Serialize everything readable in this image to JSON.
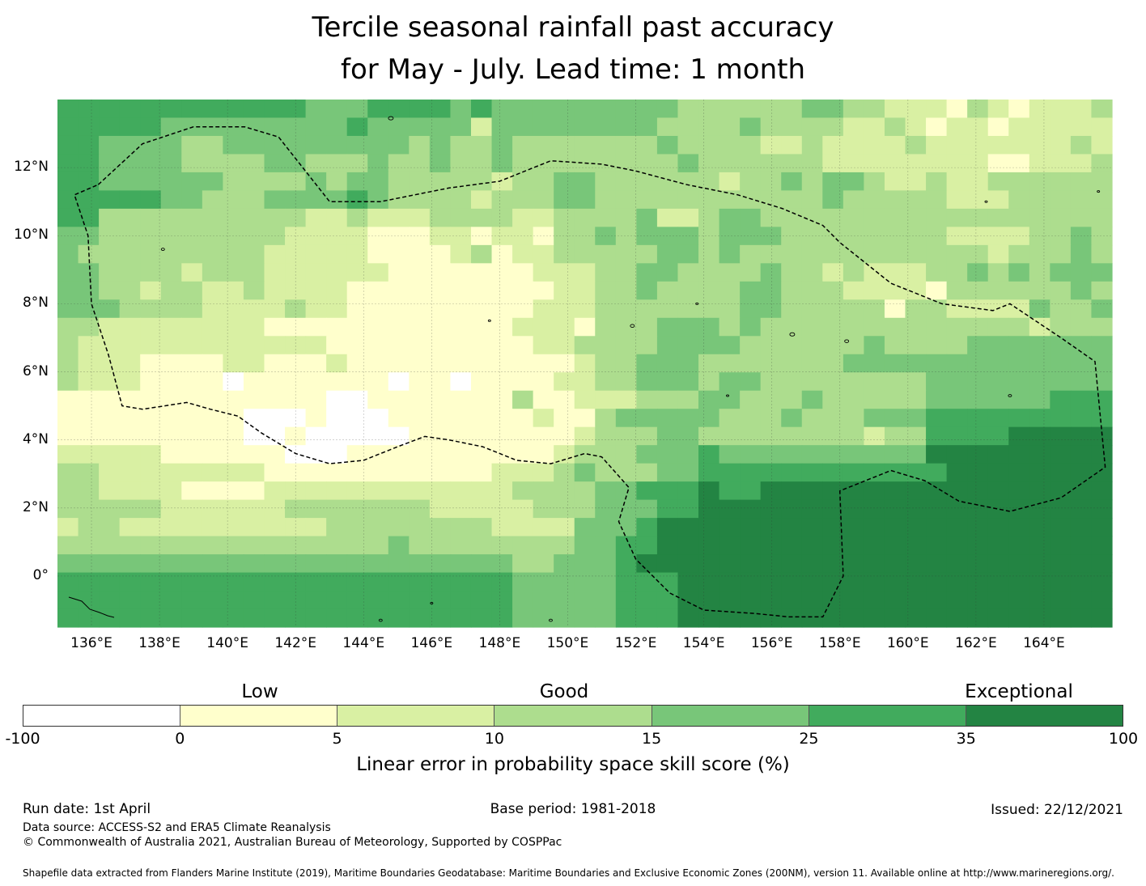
{
  "title": {
    "line1": "Tercile seasonal rainfall past accuracy",
    "line2": "for May - July. Lead time: 1 month"
  },
  "map": {
    "lon_range": [
      135,
      166
    ],
    "lat_range": [
      -1.5,
      14
    ],
    "lon_labels": [
      "136°E",
      "138°E",
      "140°E",
      "142°E",
      "144°E",
      "146°E",
      "148°E",
      "150°E",
      "152°E",
      "154°E",
      "156°E",
      "158°E",
      "160°E",
      "162°E",
      "164°E"
    ],
    "lon_values": [
      136,
      138,
      140,
      142,
      144,
      146,
      148,
      150,
      152,
      154,
      156,
      158,
      160,
      162,
      164
    ],
    "lat_labels": [
      "12°N",
      "10°N",
      "8°N",
      "6°N",
      "4°N",
      "2°N",
      "0°"
    ],
    "lat_values": [
      12,
      10,
      8,
      6,
      4,
      2,
      0
    ],
    "colors": {
      "nodata": "#ffffff",
      "c1": "#ffffcc",
      "c2": "#d9f0a3",
      "c3": "#addd8e",
      "c4": "#78c679",
      "c5": "#41ab5d",
      "c6": "#238443",
      "coast": "#000000",
      "eez": "#000000"
    },
    "skill_grid": [
      "555555555555444555545444444444333333443322213212223",
      "555554444444445444442444444443333433332232122122222",
      "554444334444444443433433333334333322322223222222232",
      "554444333344333433433433333333433333322222222112223",
      "554444443333434433333233443333332334344322322333333",
      "555554433344445433332333443333333333343333322233333",
      "553333333333223222333322333342234433333333333333333",
      "443333333332222111221221334344434443333333322223343",
      "433333333322222111123122333334434333333333333233343",
      "443333233322222211111112223344333343323222334343444",
      "443323322322221111111111223343333443332222133333343",
      "444333322223221111111112223333333443333313322224334",
      "332222222211111111111122213334443433333333333332333",
      "322222222222211111111112233334444333333433334444444",
      "322211112211121111111111123344433333334444444444444",
      "322211110111111101101111223344434433333333444444444",
      "111111111111100111111131122233344333433333444444555",
      "111111111000100011111112113444443334333444555555555",
      "111111111001000001111111123334433333333233555566666",
      "222221111110001111111111233344454444444444666666666",
      "332222222211111111111222343334455555555555566666666",
      "332222111122222222222233334455565566666666666666666",
      "333332222223333333222223334445566666666666666666666",
      "233222222222233333333222244456666666666666666666666",
      "333333333333333343333333344556666666666666666666666",
      "444444444444444444444433444566666666666666666666666",
      "555555555555555555555544444555666666666666666666666",
      "555555555555555555555544444555666666666666666666666",
      "555555555555555555555544444555666666666666666666666"
    ],
    "eez_outline": [
      [
        136.2,
        11.5
      ],
      [
        137.5,
        12.7
      ],
      [
        139.0,
        13.2
      ],
      [
        140.5,
        13.2
      ],
      [
        141.5,
        12.9
      ],
      [
        143.0,
        11.0
      ],
      [
        144.5,
        11.0
      ],
      [
        146.5,
        11.4
      ],
      [
        148.0,
        11.6
      ],
      [
        149.5,
        12.2
      ],
      [
        151.0,
        12.1
      ],
      [
        152.0,
        11.9
      ],
      [
        153.5,
        11.5
      ],
      [
        155.0,
        11.2
      ],
      [
        156.3,
        10.8
      ],
      [
        157.5,
        10.3
      ],
      [
        158.0,
        9.8
      ],
      [
        159.5,
        8.6
      ],
      [
        161.0,
        8.0
      ],
      [
        162.5,
        7.8
      ],
      [
        163.0,
        8.0
      ],
      [
        164.5,
        7.0
      ],
      [
        165.5,
        6.3
      ],
      [
        165.8,
        3.2
      ],
      [
        164.5,
        2.3
      ],
      [
        163.0,
        1.9
      ],
      [
        161.5,
        2.2
      ],
      [
        160.5,
        2.8
      ],
      [
        159.5,
        3.1
      ],
      [
        158.0,
        2.5
      ],
      [
        158.1,
        0.0
      ],
      [
        157.5,
        -1.2
      ],
      [
        156.5,
        -1.2
      ],
      [
        155.5,
        -1.1
      ],
      [
        154.0,
        -1.0
      ],
      [
        153.0,
        -0.5
      ],
      [
        152.0,
        0.5
      ],
      [
        151.5,
        1.6
      ],
      [
        151.8,
        2.6
      ],
      [
        151.0,
        3.5
      ],
      [
        150.5,
        3.6
      ],
      [
        149.5,
        3.3
      ],
      [
        148.5,
        3.4
      ],
      [
        147.5,
        3.8
      ],
      [
        146.5,
        4.0
      ],
      [
        145.8,
        4.1
      ],
      [
        145.0,
        3.8
      ],
      [
        144.0,
        3.4
      ],
      [
        143.0,
        3.3
      ],
      [
        142.0,
        3.6
      ],
      [
        141.0,
        4.2
      ],
      [
        140.3,
        4.7
      ],
      [
        139.5,
        4.9
      ],
      [
        138.8,
        5.1
      ],
      [
        137.5,
        4.9
      ],
      [
        136.9,
        5.0
      ],
      [
        136.5,
        6.5
      ],
      [
        136.0,
        8.0
      ],
      [
        135.9,
        10.0
      ],
      [
        135.5,
        11.2
      ],
      [
        136.2,
        11.5
      ]
    ]
  },
  "colorbar": {
    "categories": [
      "Low",
      "Good",
      "Exceptional"
    ],
    "ticks": [
      "-100",
      "0",
      "5",
      "10",
      "15",
      "25",
      "35",
      "100"
    ],
    "segment_colors": [
      "#ffffff",
      "#ffffcc",
      "#d9f0a3",
      "#addd8e",
      "#78c679",
      "#41ab5d",
      "#238443"
    ],
    "label": "Linear error in probability space skill score (%)"
  },
  "footer": {
    "run_date": "Run date: 1st April",
    "base_period": "Base period: 1981-2018",
    "issued": "Issued: 22/12/2021",
    "data_source": "Data source: ACCESS-S2 and ERA5 Climate Reanalysis",
    "copyright": "© Commonwealth of Australia 2021, Australian Bureau of Meteorology, Supported by COSPPac",
    "shapefile": "Shapefile data extracted from Flanders Marine Institute (2019), Maritime Boundaries Geodatabase: Maritime Boundaries and Exclusive Economic Zones (200NM), version 11. Available online at http://www.marineregions.org/."
  }
}
